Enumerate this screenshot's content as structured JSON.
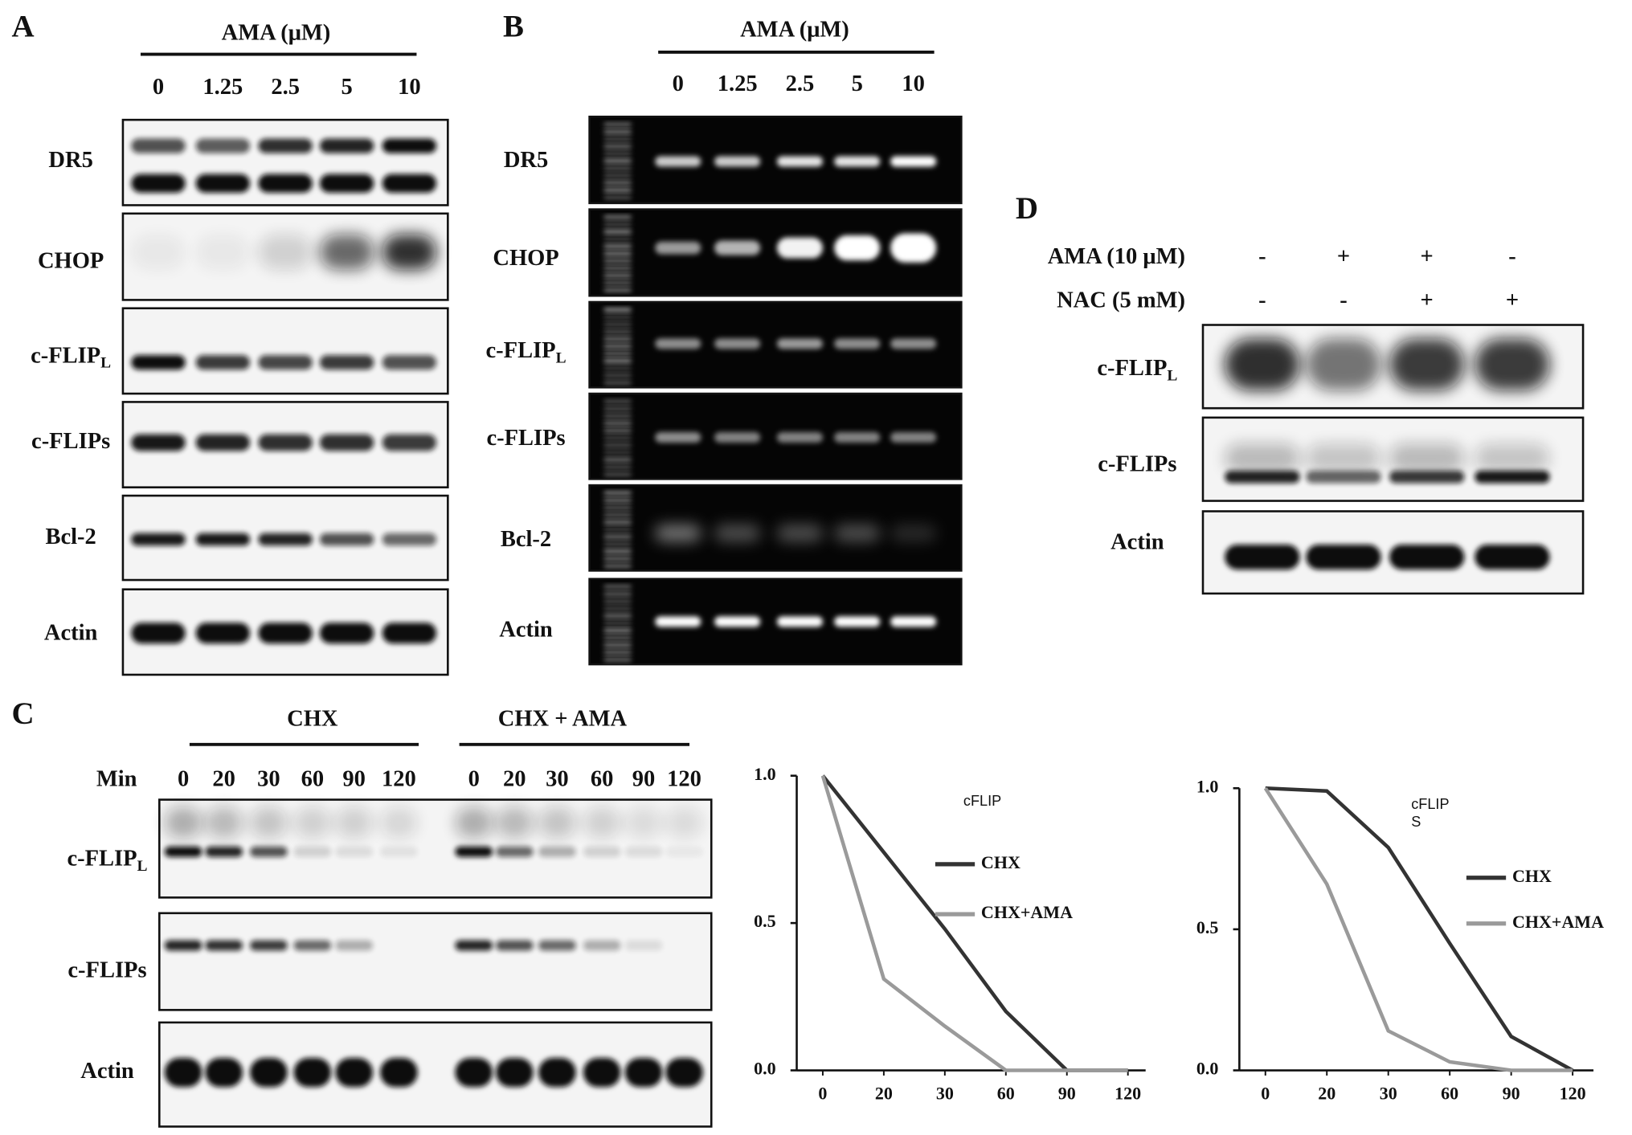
{
  "panel_a": {
    "label": "A",
    "header": "AMA (μM)",
    "lanes": [
      "0",
      "1.25",
      "2.5",
      "5",
      "10"
    ],
    "rows": [
      {
        "label": "DR5"
      },
      {
        "label": "CHOP"
      },
      {
        "label": "c-FLIP",
        "sub": "L"
      },
      {
        "label": "c-FLIPs"
      },
      {
        "label": "Bcl-2"
      },
      {
        "label": "Actin"
      }
    ]
  },
  "panel_b": {
    "label": "B",
    "header": "AMA (μM)",
    "lanes": [
      "0",
      "1.25",
      "2.5",
      "5",
      "10"
    ],
    "rows": [
      {
        "label": "DR5"
      },
      {
        "label": "CHOP"
      },
      {
        "label": "c-FLIP",
        "sub": "L"
      },
      {
        "label": "c-FLIPs"
      },
      {
        "label": "Bcl-2"
      },
      {
        "label": "Actin"
      }
    ]
  },
  "panel_c": {
    "label": "C",
    "min_label": "Min",
    "groups": [
      {
        "name": "CHX",
        "lanes": [
          "0",
          "20",
          "30",
          "60",
          "90",
          "120"
        ]
      },
      {
        "name": "CHX + AMA",
        "lanes": [
          "0",
          "20",
          "30",
          "60",
          "90",
          "120"
        ]
      }
    ],
    "rows": [
      {
        "label": "c-FLIP",
        "sub": "L"
      },
      {
        "label": "c-FLIPs"
      },
      {
        "label": "Actin"
      }
    ]
  },
  "panel_d": {
    "label": "D",
    "conditions": [
      {
        "name": "AMA (10 μM)",
        "signs": [
          "-",
          "+",
          "+",
          "-"
        ]
      },
      {
        "name": "NAC (5 mM)",
        "signs": [
          "-",
          "-",
          "+",
          "+"
        ]
      }
    ],
    "rows": [
      {
        "label": "c-FLIP",
        "sub": "L"
      },
      {
        "label": "c-FLIPs"
      },
      {
        "label": "Actin"
      }
    ]
  },
  "chart_data": [
    {
      "type": "line",
      "title": "cFLIP",
      "categories": [
        "0",
        "20",
        "30",
        "60",
        "90",
        "120"
      ],
      "ylim": [
        0,
        1
      ],
      "yticks": [
        {
          "value": 0,
          "label": "0.0"
        },
        {
          "value": 0.5,
          "label": "0.5"
        },
        {
          "value": 1,
          "label": "1.0"
        }
      ],
      "series": [
        {
          "name": "CHX",
          "color": "#333333",
          "values": [
            1.0,
            0.74,
            0.48,
            0.2,
            0,
            0
          ]
        },
        {
          "name": "CHX+AMA",
          "color": "#9a9a9a",
          "values": [
            1.0,
            0.31,
            0.15,
            0,
            0,
            0
          ]
        }
      ]
    },
    {
      "type": "line",
      "title": "cFLIP",
      "subtitle": "S",
      "categories": [
        "0",
        "20",
        "30",
        "60",
        "90",
        "120"
      ],
      "ylim": [
        0,
        1
      ],
      "yticks": [
        {
          "value": 0,
          "label": "0.0"
        },
        {
          "value": 0.5,
          "label": "0.5"
        },
        {
          "value": 1,
          "label": "1.0"
        }
      ],
      "series": [
        {
          "name": "CHX",
          "color": "#333333",
          "values": [
            1.0,
            0.99,
            0.79,
            0.45,
            0.12,
            0
          ]
        },
        {
          "name": "CHX+AMA",
          "color": "#9a9a9a",
          "values": [
            1.0,
            0.66,
            0.14,
            0.03,
            0,
            0
          ]
        }
      ]
    }
  ]
}
